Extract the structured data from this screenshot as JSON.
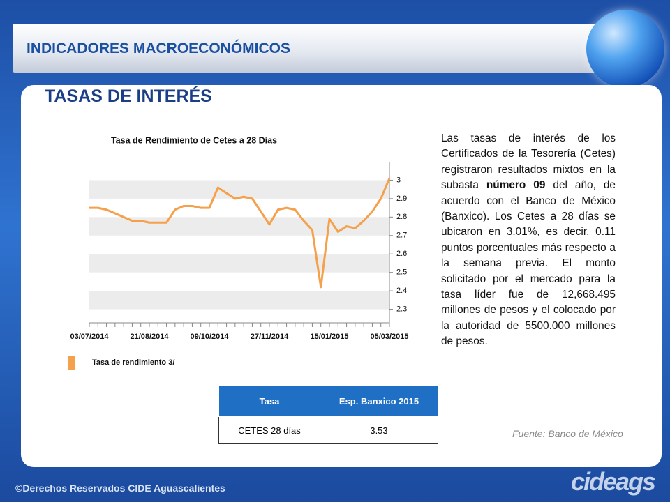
{
  "header": {
    "title": "INDICADORES MACROECONÓMICOS"
  },
  "section_title": "TASAS DE INTERÉS",
  "chart_data": {
    "type": "line",
    "title": "Tasa de Rendimiento de Cetes a 28 Días",
    "categories": [
      "03/07/2014",
      null,
      null,
      null,
      null,
      null,
      null,
      "21/08/2014",
      null,
      null,
      null,
      null,
      null,
      null,
      "09/10/2014",
      null,
      null,
      null,
      null,
      null,
      null,
      "27/11/2014",
      null,
      null,
      null,
      null,
      null,
      null,
      "15/01/2015",
      null,
      null,
      null,
      null,
      null,
      null,
      "05/03/2015"
    ],
    "series": [
      {
        "name": "Tasa de rendimiento 3/",
        "color": "#f5a04a",
        "values": [
          2.85,
          2.85,
          2.84,
          2.82,
          2.8,
          2.78,
          2.78,
          2.77,
          2.77,
          2.77,
          2.84,
          2.86,
          2.86,
          2.85,
          2.85,
          2.96,
          2.93,
          2.9,
          2.91,
          2.9,
          2.83,
          2.76,
          2.84,
          2.85,
          2.84,
          2.78,
          2.73,
          2.42,
          2.79,
          2.72,
          2.75,
          2.74,
          2.78,
          2.83,
          2.9,
          3.01
        ]
      }
    ],
    "ylim": [
      2.2,
      3.1
    ],
    "yticks": [
      2.3,
      2.4,
      2.5,
      2.6,
      2.7,
      2.8,
      2.9,
      3
    ],
    "grid": true,
    "legend": "bottom-left"
  },
  "paragraph": [
    "Las tasas de interés de los Certificados de la Tesorería (Cetes) registraron resultados mixtos en la subasta ",
    "número 09",
    " del año, de acuerdo con el Banco de México (Banxico). Los Cetes a 28 días se ubicaron en 3.01%, es decir, 0.11 puntos porcentuales más respecto a la semana previa. El monto solicitado por el mercado para la tasa líder fue de 12,668.495 millones de pesos y el colocado por la autoridad de 5500.000 millones de pesos."
  ],
  "table": {
    "header": [
      "Tasa",
      "Esp. Banxico 2015"
    ],
    "rows": [
      [
        "CETES 28 días",
        "3.53"
      ]
    ]
  },
  "source": "Fuente: Banco de México",
  "footer": "©Derechos Reservados CIDE Aguascalientes",
  "logo": "cideags"
}
